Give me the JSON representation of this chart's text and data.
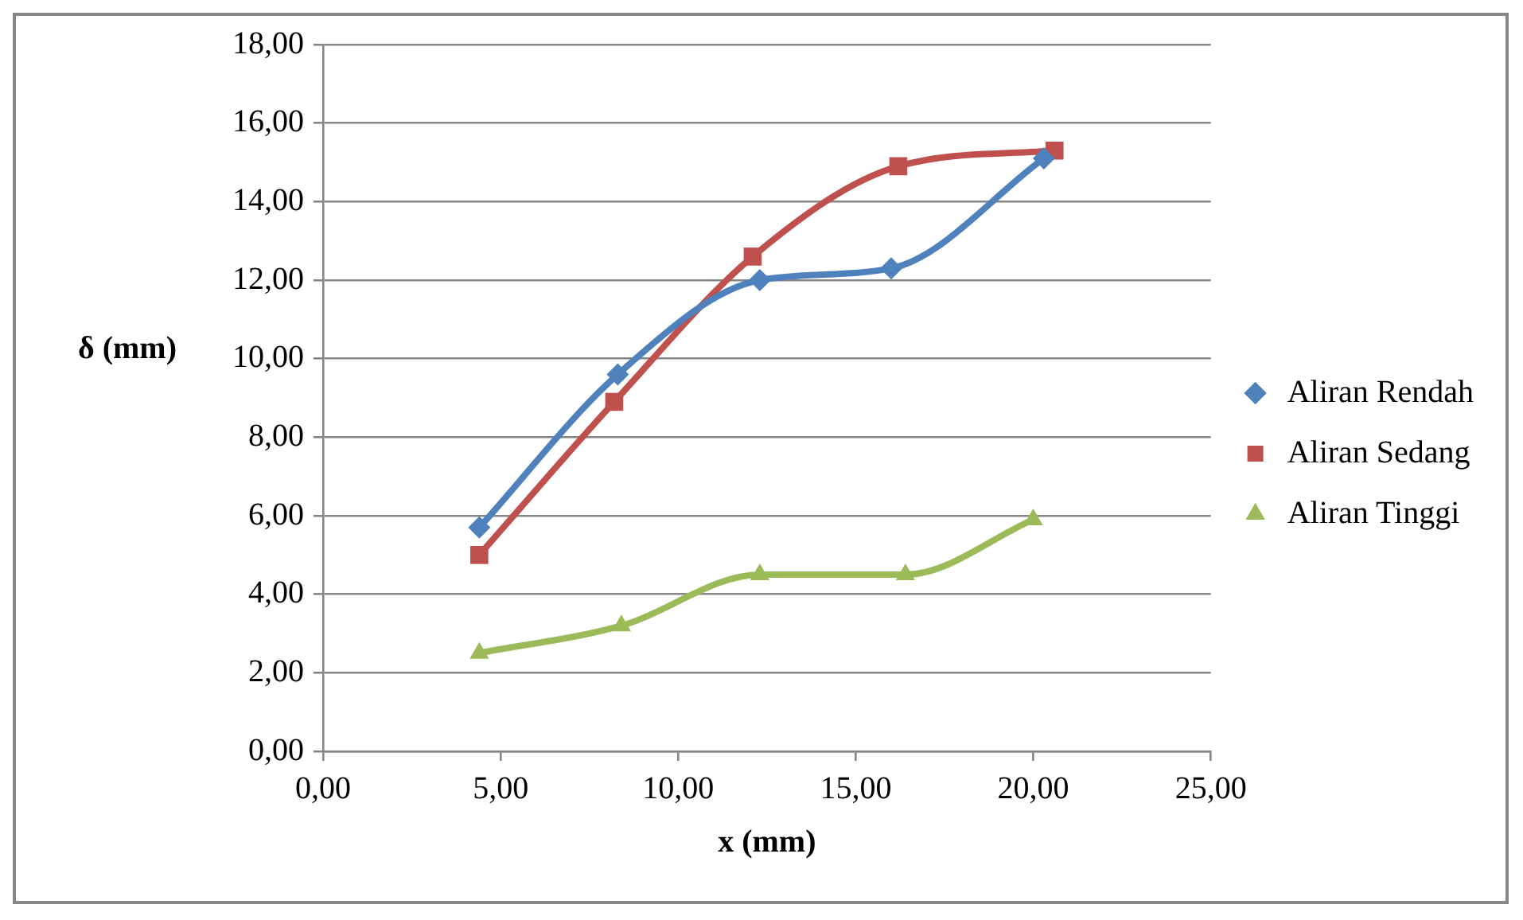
{
  "chart_data": {
    "type": "line",
    "xlabel": "x (mm)",
    "ylabel": "δ (mm)",
    "xlim": [
      0,
      25
    ],
    "xticks": [
      {
        "value": 0,
        "label": "0,00"
      },
      {
        "value": 5,
        "label": "5,00"
      },
      {
        "value": 10,
        "label": "10,00"
      },
      {
        "value": 15,
        "label": "15,00"
      },
      {
        "value": 20,
        "label": "20,00"
      },
      {
        "value": 25,
        "label": "25,00"
      }
    ],
    "ylim": [
      0,
      18
    ],
    "yticks": [
      {
        "value": 0,
        "label": "0,00"
      },
      {
        "value": 2,
        "label": "2,00"
      },
      {
        "value": 4,
        "label": "4,00"
      },
      {
        "value": 6,
        "label": "6,00"
      },
      {
        "value": 8,
        "label": "8,00"
      },
      {
        "value": 10,
        "label": "10,00"
      },
      {
        "value": 12,
        "label": "12,00"
      },
      {
        "value": 14,
        "label": "14,00"
      },
      {
        "value": 16,
        "label": "16,00"
      },
      {
        "value": 18,
        "label": "18,00"
      }
    ],
    "grid": "y",
    "legend": "right",
    "series": [
      {
        "name": "Aliran Rendah",
        "color": "#4f81bd",
        "marker": "diamond",
        "x": [
          4.4,
          8.3,
          12.3,
          16.0,
          20.3
        ],
        "values": [
          5.7,
          9.6,
          12.0,
          12.3,
          15.1
        ]
      },
      {
        "name": "Aliran Sedang",
        "color": "#c0504d",
        "marker": "square",
        "x": [
          4.4,
          8.2,
          12.1,
          16.2,
          20.6
        ],
        "values": [
          5.0,
          8.9,
          12.6,
          14.9,
          15.3
        ]
      },
      {
        "name": "Aliran Tinggi",
        "color": "#9bbb59",
        "marker": "triangle",
        "x": [
          4.4,
          8.4,
          12.3,
          16.4,
          20.0
        ],
        "values": [
          2.5,
          3.2,
          4.5,
          4.5,
          5.9
        ]
      }
    ]
  }
}
